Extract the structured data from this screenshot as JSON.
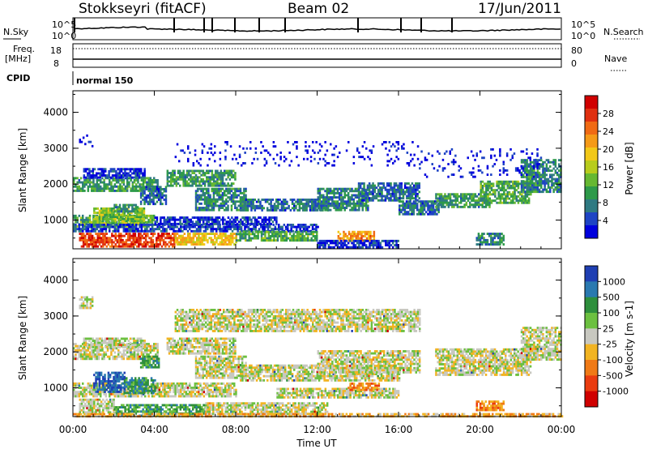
{
  "header": {
    "station": "Stokkseyri (fitACF)",
    "beam": "Beam 02",
    "date": "17/Jun/2011"
  },
  "strips": {
    "nsky_label": "N.Sky",
    "nsky_tick_top": "10^5",
    "nsky_tick_bottom": "10^0",
    "nsearch_label": "N.Search",
    "nsearch_tick_top": "10^5",
    "nsearch_tick_bottom": "10^0",
    "freq_label": "Freq.",
    "freq_unit": "[MHz]",
    "freq_tick_top": "18",
    "freq_tick_bottom": "8",
    "nave_label": "Nave",
    "nave_tick_top": "80",
    "nave_tick_bottom": "0",
    "cpid_label": "CPID",
    "cpid_value": "normal 150"
  },
  "chart_data": [
    {
      "type": "heatmap",
      "panel": "power",
      "ylabel": "Slant Range [km]",
      "yticks": [
        "1000",
        "2000",
        "3000",
        "4000"
      ],
      "ylim": [
        200,
        4600
      ],
      "xlim": [
        0,
        24
      ],
      "colorbar_label": "Power [dB]",
      "colorbar_ticks": [
        "4",
        "8",
        "12",
        "16",
        "20",
        "24",
        "28"
      ],
      "colorbar_colors": [
        "#0000dd",
        "#1e44c4",
        "#2f7a82",
        "#2e9a4a",
        "#66b832",
        "#b8cc1c",
        "#f2c818",
        "#f59a18",
        "#f06a14",
        "#e03010",
        "#d00000"
      ],
      "bands": [
        {
          "t": [
            0.0,
            4.2
          ],
          "r0": 1800,
          "r1": 2200,
          "lvl": 0.3
        },
        {
          "t": [
            0.5,
            3.5
          ],
          "r0": 2200,
          "r1": 2450,
          "lvl": 0.1
        },
        {
          "t": [
            3.3,
            4.6
          ],
          "r0": 1450,
          "r1": 1950,
          "lvl": 0.2
        },
        {
          "t": [
            4.6,
            8.0
          ],
          "r0": 1950,
          "r1": 2400,
          "lvl": 0.3
        },
        {
          "t": [
            6.0,
            8.5
          ],
          "r0": 1300,
          "r1": 1900,
          "lvl": 0.25
        },
        {
          "t": [
            8.2,
            12.5
          ],
          "r0": 1250,
          "r1": 1600,
          "lvl": 0.2
        },
        {
          "t": [
            12.0,
            14.5
          ],
          "r0": 1300,
          "r1": 1900,
          "lvl": 0.25
        },
        {
          "t": [
            14.0,
            17.0
          ],
          "r0": 1550,
          "r1": 2050,
          "lvl": 0.2
        },
        {
          "t": [
            16.0,
            18.0
          ],
          "r0": 1150,
          "r1": 1550,
          "lvl": 0.2
        },
        {
          "t": [
            17.8,
            20.5
          ],
          "r0": 1350,
          "r1": 1750,
          "lvl": 0.3
        },
        {
          "t": [
            20.0,
            22.5
          ],
          "r0": 1500,
          "r1": 2100,
          "lvl": 0.35
        },
        {
          "t": [
            22.0,
            24.0
          ],
          "r0": 1800,
          "r1": 2700,
          "lvl": 0.25
        },
        {
          "t": [
            0.0,
            4.0
          ],
          "r0": 850,
          "r1": 1150,
          "lvl": 0.35
        },
        {
          "t": [
            1.0,
            3.5
          ],
          "r0": 900,
          "r1": 1350,
          "lvl": 0.45
        },
        {
          "t": [
            2.0,
            3.2
          ],
          "r0": 1250,
          "r1": 1450,
          "lvl": 0.3
        },
        {
          "t": [
            0.0,
            12.0
          ],
          "r0": 700,
          "r1": 900,
          "lvl": 0.12
        },
        {
          "t": [
            4.0,
            10.0
          ],
          "r0": 900,
          "r1": 1100,
          "lvl": 0.1
        },
        {
          "t": [
            0.3,
            5.0
          ],
          "r0": 250,
          "r1": 650,
          "lvl": 0.85
        },
        {
          "t": [
            5.0,
            8.0
          ],
          "r0": 350,
          "r1": 650,
          "lvl": 0.6
        },
        {
          "t": [
            8.0,
            12.0
          ],
          "r0": 450,
          "r1": 700,
          "lvl": 0.35
        },
        {
          "t": [
            13.0,
            14.8
          ],
          "r0": 450,
          "r1": 700,
          "lvl": 0.7
        },
        {
          "t": [
            12.0,
            16.0
          ],
          "r0": 250,
          "r1": 450,
          "lvl": 0.1
        },
        {
          "t": [
            19.8,
            21.2
          ],
          "r0": 350,
          "r1": 650,
          "lvl": 0.25
        },
        {
          "t": [
            5.0,
            17.0
          ],
          "r0": 2500,
          "r1": 3200,
          "lvl": 0.02
        },
        {
          "t": [
            17.0,
            23.0
          ],
          "r0": 2200,
          "r1": 3000,
          "lvl": 0.05
        },
        {
          "t": [
            0.3,
            1.0
          ],
          "r0": 3000,
          "r1": 3500,
          "lvl": 0.02
        }
      ]
    },
    {
      "type": "heatmap",
      "panel": "velocity",
      "ylabel": "Slant Range [km]",
      "yticks": [
        "1000",
        "2000",
        "3000",
        "4000"
      ],
      "ylim": [
        200,
        4600
      ],
      "xlim": [
        0,
        24
      ],
      "xlabel": "Time UT",
      "xticks": [
        "00:00",
        "04:00",
        "08:00",
        "12:00",
        "16:00",
        "20:00",
        "00:00"
      ],
      "colorbar_label": "Velocity [m s-1]",
      "colorbar_ticks": [
        "1000",
        "500",
        "100",
        "25",
        "-25",
        "-100",
        "-500",
        "-1000"
      ],
      "colorbar_colors": [
        "#1f3fb3",
        "#2a79b0",
        "#2e8f3c",
        "#6cc040",
        "#c8c8c0",
        "#f2b422",
        "#f07a16",
        "#ea3c10",
        "#d00000"
      ],
      "bands": [
        {
          "t": [
            0.0,
            4.2
          ],
          "r0": 1800,
          "r1": 2250,
          "lvl": 0.5
        },
        {
          "t": [
            0.5,
            3.5
          ],
          "r0": 2150,
          "r1": 2400,
          "lvl": 0.5
        },
        {
          "t": [
            4.6,
            8.0
          ],
          "r0": 1950,
          "r1": 2400,
          "lvl": 0.5
        },
        {
          "t": [
            6.0,
            8.5
          ],
          "r0": 1300,
          "r1": 1900,
          "lvl": 0.5
        },
        {
          "t": [
            8.2,
            16.0
          ],
          "r0": 1200,
          "r1": 1650,
          "lvl": 0.5
        },
        {
          "t": [
            12.0,
            17.0
          ],
          "r0": 1450,
          "r1": 2050,
          "lvl": 0.5
        },
        {
          "t": [
            17.8,
            22.5
          ],
          "r0": 1350,
          "r1": 2100,
          "lvl": 0.5
        },
        {
          "t": [
            22.0,
            24.0
          ],
          "r0": 1800,
          "r1": 2700,
          "lvl": 0.5
        },
        {
          "t": [
            0.0,
            8.0
          ],
          "r0": 750,
          "r1": 1150,
          "lvl": 0.5
        },
        {
          "t": [
            1.0,
            2.5
          ],
          "r0": 900,
          "r1": 1450,
          "lvl": 0.1
        },
        {
          "t": [
            2.5,
            4.0
          ],
          "r0": 850,
          "r1": 1300,
          "lvl": 0.25
        },
        {
          "t": [
            3.3,
            4.2
          ],
          "r0": 1600,
          "r1": 1900,
          "lvl": 0.3
        },
        {
          "t": [
            0.3,
            2.0
          ],
          "r0": 300,
          "r1": 700,
          "lvl": 0.5
        },
        {
          "t": [
            2.0,
            6.5
          ],
          "r0": 250,
          "r1": 550,
          "lvl": 0.3
        },
        {
          "t": [
            6.5,
            12.5
          ],
          "r0": 300,
          "r1": 600,
          "lvl": 0.5
        },
        {
          "t": [
            10.0,
            16.0
          ],
          "r0": 750,
          "r1": 1000,
          "lvl": 0.5
        },
        {
          "t": [
            13.5,
            15.0
          ],
          "r0": 950,
          "r1": 1150,
          "lvl": 0.7
        },
        {
          "t": [
            19.8,
            21.2
          ],
          "r0": 400,
          "r1": 650,
          "lvl": 0.7
        },
        {
          "t": [
            0.0,
            24.0
          ],
          "r0": 200,
          "r1": 300,
          "lvl": 0.62
        },
        {
          "t": [
            5.0,
            17.0
          ],
          "r0": 2600,
          "r1": 3200,
          "lvl": 0.5
        },
        {
          "t": [
            0.3,
            1.0
          ],
          "r0": 3200,
          "r1": 3550,
          "lvl": 0.5
        }
      ]
    }
  ]
}
